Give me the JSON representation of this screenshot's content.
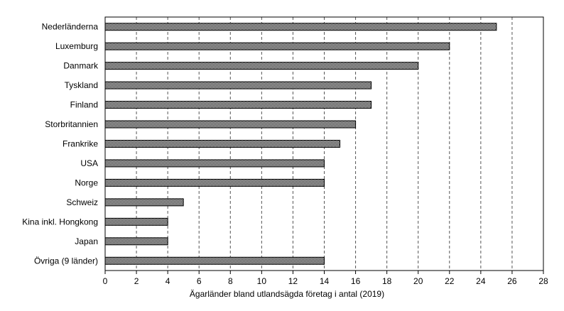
{
  "chart_data": {
    "type": "bar",
    "orientation": "horizontal",
    "categories": [
      "Nederländerna",
      "Luxemburg",
      "Danmark",
      "Tyskland",
      "Finland",
      "Storbritannien",
      "Frankrike",
      "USA",
      "Norge",
      "Schweiz",
      "Kina inkl. Hongkong",
      "Japan",
      "Övriga (9 länder)"
    ],
    "values": [
      25,
      22,
      20,
      17,
      17,
      16,
      15,
      14,
      14,
      5,
      4,
      4,
      14
    ],
    "xlabel": "Ägarländer bland utlandsägda företag i antal (2019)",
    "ylabel": "",
    "xlim": [
      0,
      28
    ],
    "xticks": [
      0,
      2,
      4,
      6,
      8,
      10,
      12,
      14,
      16,
      18,
      20,
      22,
      24,
      26,
      28
    ],
    "grid": "vertical dashed",
    "legend": "none",
    "bar_color": "#000000",
    "bar_pattern": "dotted hatch",
    "gridline_color": "#555555"
  }
}
